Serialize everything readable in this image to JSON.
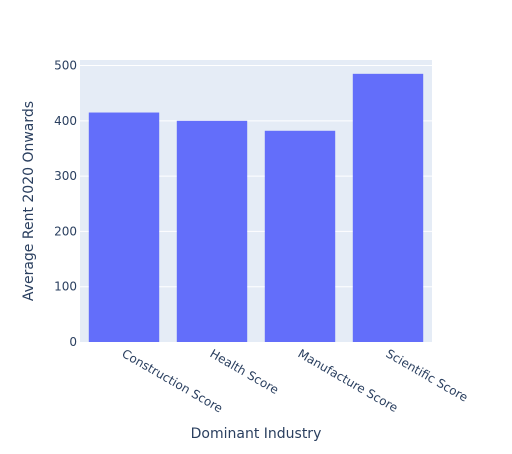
{
  "chart_data": {
    "type": "bar",
    "categories": [
      "Construction Score",
      "Health Score",
      "Manufacture Score",
      "Scientific Score"
    ],
    "values": [
      415,
      400,
      382,
      485
    ],
    "xlabel": "Dominant Industry",
    "ylabel": "Average Rent 2020 Onwards",
    "ylim": [
      0,
      510
    ],
    "yticks": [
      0,
      100,
      200,
      300,
      400,
      500
    ],
    "grid": true,
    "bar_color": "#636efa",
    "plot_background": "#e5ecf6",
    "grid_color": "#ffffff",
    "text_color": "#2a3f5f"
  }
}
